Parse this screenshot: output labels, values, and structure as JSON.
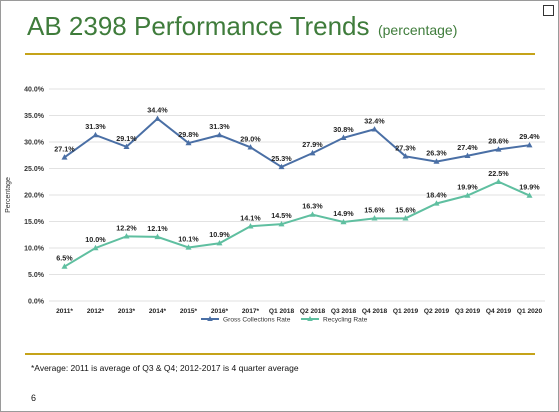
{
  "slide": {
    "title": "AB 2398 Performance Trends",
    "subtitle": "(percentage)",
    "footnote": "*Average: 2011 is average of Q3 & Q4; 2012-2017 is 4 quarter average",
    "page_number": "6"
  },
  "chart_data": {
    "type": "line",
    "categories": [
      "2011*",
      "2012*",
      "2013*",
      "2014*",
      "2015*",
      "2016*",
      "2017*",
      "Q1 2018",
      "Q2 2018",
      "Q3 2018",
      "Q4 2018",
      "Q1 2019",
      "Q2 2019",
      "Q3 2019",
      "Q4 2019",
      "Q1 2020"
    ],
    "series": [
      {
        "name": "Gross Collections Rate",
        "color": "#4a6fa5",
        "marker": "triangle",
        "values": [
          27.1,
          31.3,
          29.1,
          34.4,
          29.8,
          31.3,
          29.0,
          25.3,
          27.9,
          30.8,
          32.4,
          27.3,
          26.3,
          27.4,
          28.6,
          29.4
        ],
        "labels": [
          "27.1%",
          "31.3%",
          "29.1%",
          "34.4%",
          "29.8%",
          "31.3%",
          "29.0%",
          "25.3%",
          "27.9%",
          "30.8%",
          "32.4%",
          "27.3%",
          "26.3%",
          "27.4%",
          "28.6%",
          "29.4%"
        ]
      },
      {
        "name": "Recycling Rate",
        "color": "#5fbfa0",
        "marker": "triangle",
        "values": [
          6.5,
          10.0,
          12.2,
          12.1,
          10.1,
          10.9,
          14.1,
          14.5,
          16.3,
          14.9,
          15.6,
          15.6,
          18.4,
          19.9,
          22.5,
          19.9
        ],
        "labels": [
          "6.5%",
          "10.0%",
          "12.2%",
          "12.1%",
          "10.1%",
          "10.9%",
          "14.1%",
          "14.5%",
          "16.3%",
          "14.9%",
          "15.6%",
          "15.6%",
          "18.4%",
          "19.9%",
          "22.5%",
          "19.9%"
        ]
      }
    ],
    "ylabel": "Percentage",
    "ylim": [
      0,
      40
    ],
    "yticks": [
      0,
      5,
      10,
      15,
      20,
      25,
      30,
      35,
      40
    ],
    "ytick_labels": [
      "0.0%",
      "5.0%",
      "10.0%",
      "15.0%",
      "20.0%",
      "25.0%",
      "30.0%",
      "35.0%",
      "40.0%"
    ],
    "grid": true,
    "legend_position": "bottom"
  }
}
